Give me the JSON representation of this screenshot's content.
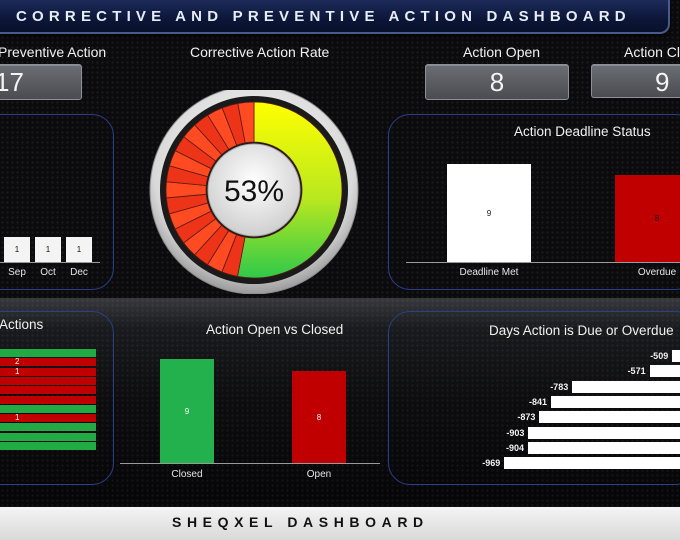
{
  "header": {
    "title": "CORRECTIVE AND PREVENTIVE ACTION DASHBOARD"
  },
  "kpis": {
    "preventive": {
      "label": "Preventive Action",
      "value": "17"
    },
    "rate_title": "Corrective Action Rate",
    "open": {
      "label": "Action Open",
      "value": "8"
    },
    "closed": {
      "label": "Action Closed",
      "value": "9"
    }
  },
  "gauge": {
    "value_text": "53%",
    "percent": 53,
    "colors": {
      "done_start": "#ffff00",
      "done_end": "#33cc33",
      "remaining": "#ff3b1f"
    }
  },
  "monthly_chart": {
    "categories": [
      "Sep",
      "Oct",
      "Dec"
    ],
    "values": [
      "1",
      "1",
      "1"
    ]
  },
  "deadline_status": {
    "title": "Action Deadline Status",
    "chart_data": {
      "type": "bar",
      "categories": [
        "Deadline Met",
        "Overdue"
      ],
      "values": [
        9,
        8
      ],
      "colors": [
        "#ffffff",
        "#c00000"
      ]
    }
  },
  "actions_panel": {
    "title": "Actions",
    "row_labels": [
      "2",
      "1",
      "1"
    ],
    "rows": [
      {
        "color": "#22aa44"
      },
      {
        "color": "#c00000",
        "label_index": 0
      },
      {
        "color": "#c00000",
        "label_index": 1
      },
      {
        "color": "#c00000"
      },
      {
        "color": "#c00000"
      },
      {
        "color": "#c00000"
      },
      {
        "color": "#22aa44"
      },
      {
        "color": "#c00000",
        "label_index": 2
      },
      {
        "color": "#22aa44"
      },
      {
        "color": "#22aa44"
      },
      {
        "color": "#22aa44"
      }
    ]
  },
  "open_vs_closed": {
    "title": "Action Open vs Closed",
    "chart_data": {
      "type": "bar",
      "categories": [
        "Closed",
        "Open"
      ],
      "values": [
        9,
        8
      ],
      "colors": [
        "#22b14c",
        "#c00000"
      ]
    }
  },
  "days_due": {
    "title": "Days Action is Due or Overdue",
    "chart_data": {
      "type": "bar",
      "orientation": "horizontal",
      "values": [
        -509,
        -571,
        -783,
        -841,
        -873,
        -903,
        -904,
        -969
      ]
    }
  },
  "footer": {
    "text": "SHEQXEL DASHBOARD"
  }
}
